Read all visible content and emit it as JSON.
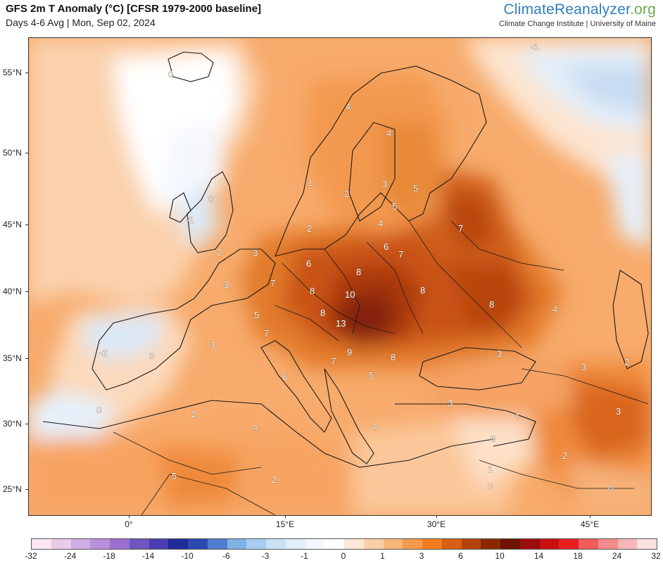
{
  "header": {
    "title": "GFS 2m T Anomaly (°C) [CFSR 1979-2000 baseline]",
    "subtitle": "Days 4-6 Avg | Mon, Sep 02, 2024",
    "brand_part1": "ClimateReanalyzer",
    "brand_part2": ".org",
    "brand_sub": "Climate Change Institute | University of Maine"
  },
  "axes": {
    "lat_labels": [
      "55°N",
      "50°N",
      "45°N",
      "40°N",
      "35°N",
      "30°N",
      "25°N"
    ],
    "lon_labels": [
      "0°",
      "15°E",
      "30°E",
      "45°E"
    ]
  },
  "colorbar": {
    "labels": [
      "-32",
      "-24",
      "-18",
      "-14",
      "-10",
      "-6",
      "-3",
      "-1",
      "0",
      "1",
      "3",
      "6",
      "10",
      "14",
      "18",
      "24",
      "32"
    ],
    "colors": [
      "#fbe6f1",
      "#e8cbea",
      "#cfaee3",
      "#b88fdc",
      "#9b6fd0",
      "#6f55bf",
      "#4a3fae",
      "#1f2a99",
      "#2b4bb3",
      "#4f7cd0",
      "#7fb0e6",
      "#a8cdf0",
      "#c9e1f6",
      "#e2eefa",
      "#f2f7fc",
      "#ffffff",
      "#fde7d6",
      "#fbcfa6",
      "#f9b478",
      "#f69a4e",
      "#f27e22",
      "#d95f10",
      "#b3420a",
      "#8a2a05",
      "#6e1404",
      "#9b0c0c",
      "#c81010",
      "#e81e1e",
      "#f35a5a",
      "#f58a8a",
      "#f7b6b6",
      "#fae0e0"
    ]
  },
  "contour_labels": [
    {
      "text": "4"
    },
    {
      "text": "4"
    },
    {
      "text": "1"
    },
    {
      "text": "2"
    },
    {
      "text": "3"
    },
    {
      "text": "5"
    },
    {
      "text": "0"
    },
    {
      "text": "-1"
    },
    {
      "text": "2"
    },
    {
      "text": "5"
    },
    {
      "text": "4"
    },
    {
      "text": "6"
    },
    {
      "text": "7"
    },
    {
      "text": "7"
    },
    {
      "text": "2"
    },
    {
      "text": "3"
    },
    {
      "text": "6"
    },
    {
      "text": "8"
    },
    {
      "text": "3"
    },
    {
      "text": "7"
    },
    {
      "text": "8"
    },
    {
      "text": "10"
    },
    {
      "text": "8"
    },
    {
      "text": "8"
    },
    {
      "text": "8"
    },
    {
      "text": "4"
    },
    {
      "text": "5"
    },
    {
      "text": "13"
    },
    {
      "text": "7"
    },
    {
      "text": "3"
    },
    {
      "text": "9"
    },
    {
      "text": "-2"
    },
    {
      "text": "3"
    },
    {
      "text": "7"
    },
    {
      "text": "8"
    },
    {
      "text": "3"
    },
    {
      "text": "3"
    },
    {
      "text": "2"
    },
    {
      "text": "6"
    },
    {
      "text": "5"
    },
    {
      "text": "0"
    },
    {
      "text": "2"
    },
    {
      "text": "4"
    },
    {
      "text": "3"
    },
    {
      "text": "4"
    },
    {
      "text": "3"
    },
    {
      "text": "4"
    },
    {
      "text": "0"
    },
    {
      "text": "2"
    },
    {
      "text": "5"
    },
    {
      "text": "2"
    },
    {
      "text": "1"
    },
    {
      "text": "0"
    },
    {
      "text": "0"
    },
    {
      "text": "0"
    },
    {
      "text": "-1"
    }
  ]
}
